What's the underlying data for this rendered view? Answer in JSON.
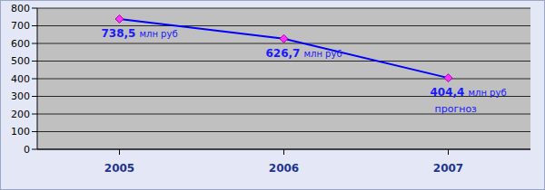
{
  "chart_data": {
    "type": "line",
    "categories": [
      "2005",
      "2006",
      "2007"
    ],
    "values": [
      738.5,
      626.7,
      404.4
    ],
    "value_labels": [
      "738,5 млн руб",
      "626,7 млн руб",
      "404,4 млн руб"
    ],
    "data_labels": true,
    "annotations": [
      {
        "category": "2007",
        "text": "прогноз"
      }
    ],
    "color": "#0000ff",
    "marker": "diamond",
    "ylim": [
      0,
      800
    ],
    "yticks": [
      0,
      100,
      200,
      300,
      400,
      500,
      600,
      700,
      800
    ],
    "grid": true
  }
}
